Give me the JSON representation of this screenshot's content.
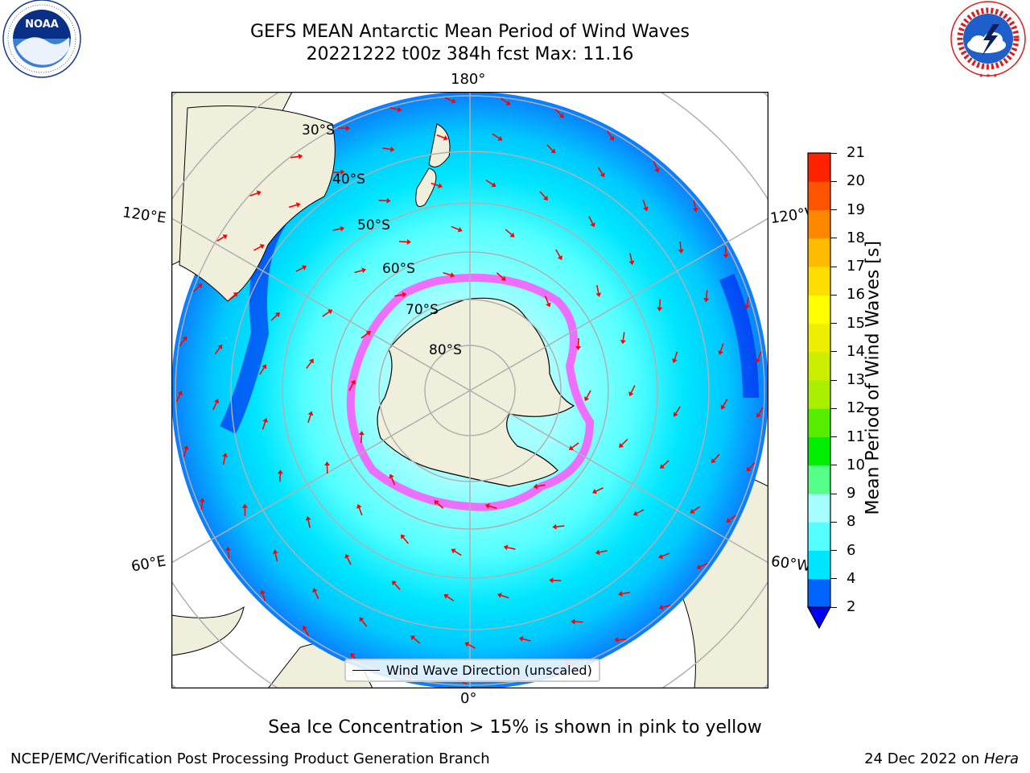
{
  "header": {
    "title_line1": "GEFS MEAN Antarctic Mean Period of Wind Waves",
    "title_line2": "20221222 t00z 384h fcst   Max: 11.16"
  },
  "logos": {
    "left": {
      "text": "NOAA",
      "ring_text": "NATIONAL OCEANIC AND ATMOSPHERIC ADMINISTRATION · U.S. DEPARTMENT OF COMMERCE"
    },
    "right": {
      "ring_text": "NATIONAL WEATHER SERVICE"
    }
  },
  "map": {
    "projection": "south polar stereographic",
    "longitude_labels": {
      "top": "180°",
      "bottom": "0°",
      "left_upper": "120°E",
      "left_lower": "60°E",
      "right_upper": "120°W",
      "right_lower": "60°W"
    },
    "latitude_labels": [
      "30°S",
      "40°S",
      "50°S",
      "60°S",
      "70°S",
      "80°S"
    ],
    "legend": "Wind Wave Direction (unscaled)",
    "colors": {
      "land": "#efefdb",
      "ice": "#ff55ff",
      "ocean_low": "#0a7dff",
      "ocean_mid": "#00e5ff",
      "ocean_high": "#a5ffff",
      "arrow": "#ff0000"
    }
  },
  "colorbar": {
    "label": "Mean Period of Wind Waves [s]",
    "ticks": [
      "2",
      "4",
      "6",
      "8",
      "9",
      "10",
      "11",
      "12",
      "13",
      "14",
      "15",
      "16",
      "17",
      "18",
      "19",
      "20",
      "21"
    ],
    "colors": [
      "#0064ff",
      "#00e5ff",
      "#55ffff",
      "#a5ffff",
      "#55ff88",
      "#00ee00",
      "#55ee00",
      "#aaee00",
      "#ccee00",
      "#eeee00",
      "#ffff00",
      "#ffdd00",
      "#ffbb00",
      "#ff8800",
      "#ff5500",
      "#ff2200"
    ],
    "under_color": "#0000ff"
  },
  "caption": "Sea Ice Concentration > 15% is shown in pink to yellow",
  "footer": {
    "left": "NCEP/EMC/Verification Post Processing Product Generation Branch",
    "right_date": "24 Dec 2022 on ",
    "right_host": "Hera"
  }
}
